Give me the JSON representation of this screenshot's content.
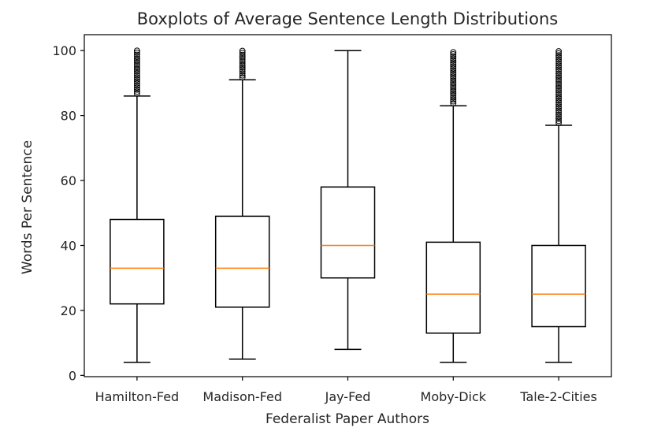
{
  "chart_data": {
    "type": "boxplot",
    "title": "Boxplots of Average Sentence Length Distributions",
    "xlabel": "Federalist Paper Authors",
    "ylabel": "Words Per Sentence",
    "ylim": [
      -0.4,
      104.9
    ],
    "yticks": [
      0,
      20,
      40,
      60,
      80,
      100
    ],
    "grid": false,
    "categories": [
      "Hamilton-Fed",
      "Madison-Fed",
      "Jay-Fed",
      "Moby-Dick",
      "Tale-2-Cities"
    ],
    "boxes": [
      {
        "min": 4,
        "q1": 22,
        "median": 33,
        "q3": 48,
        "max": 86,
        "outliers_range": [
          86,
          100
        ]
      },
      {
        "min": 5,
        "q1": 21,
        "median": 33,
        "q3": 49,
        "max": 91,
        "outliers_range": [
          91,
          100
        ]
      },
      {
        "min": 8,
        "q1": 30,
        "median": 40,
        "q3": 58,
        "max": 100,
        "outliers_range": null
      },
      {
        "min": 4,
        "q1": 13,
        "median": 25,
        "q3": 41,
        "max": 83,
        "outliers_range": [
          83,
          100
        ]
      },
      {
        "min": 4,
        "q1": 15,
        "median": 25,
        "q3": 40,
        "max": 77,
        "outliers_range": [
          77,
          100
        ]
      }
    ],
    "colors": {
      "box": "#000000",
      "median": "#ff7f0e",
      "text": "#262626"
    }
  }
}
